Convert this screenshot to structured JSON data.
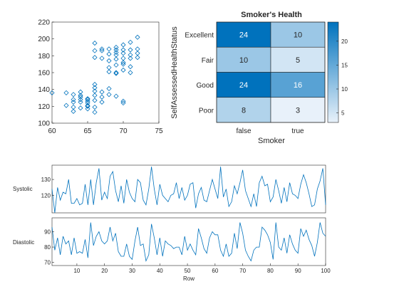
{
  "chart_data": [
    {
      "type": "scatter",
      "marker": "diamond",
      "marker_color": "#0072BD",
      "xlim": [
        60,
        75
      ],
      "ylim": [
        100,
        220
      ],
      "xticks": [
        "60",
        "65",
        "70",
        "75"
      ],
      "yticks": [
        "100",
        "120",
        "140",
        "160",
        "180",
        "200",
        "220"
      ],
      "grid": false,
      "points": [
        [
          60,
          136
        ],
        [
          62,
          136
        ],
        [
          62,
          121
        ],
        [
          63,
          128
        ],
        [
          63,
          125
        ],
        [
          63,
          119
        ],
        [
          63,
          114
        ],
        [
          63,
          134
        ],
        [
          64,
          128
        ],
        [
          64,
          131
        ],
        [
          64,
          125
        ],
        [
          64,
          118
        ],
        [
          64,
          133
        ],
        [
          64,
          137
        ],
        [
          65,
          126
        ],
        [
          65,
          129
        ],
        [
          65,
          124
        ],
        [
          65,
          121
        ],
        [
          65,
          117
        ],
        [
          65,
          128
        ],
        [
          66,
          146
        ],
        [
          66,
          142
        ],
        [
          66,
          138
        ],
        [
          66,
          133
        ],
        [
          66,
          127
        ],
        [
          66,
          119
        ],
        [
          66,
          113
        ],
        [
          66,
          178
        ],
        [
          66,
          195
        ],
        [
          66,
          186
        ],
        [
          67,
          131
        ],
        [
          67,
          137
        ],
        [
          67,
          125
        ],
        [
          67,
          186
        ],
        [
          67,
          177
        ],
        [
          68,
          182
        ],
        [
          68,
          174
        ],
        [
          68,
          166
        ],
        [
          68,
          161
        ],
        [
          68,
          134
        ],
        [
          68,
          141
        ],
        [
          69,
          190
        ],
        [
          69,
          187
        ],
        [
          69,
          176
        ],
        [
          69,
          184
        ],
        [
          69,
          181
        ],
        [
          69,
          169
        ],
        [
          69,
          159
        ],
        [
          69,
          132
        ],
        [
          70,
          183
        ],
        [
          70,
          177
        ],
        [
          70,
          170
        ],
        [
          70,
          163
        ],
        [
          70,
          124
        ],
        [
          70,
          193
        ],
        [
          70,
          187
        ],
        [
          70,
          172
        ],
        [
          70,
          126
        ],
        [
          71,
          181
        ],
        [
          71,
          196
        ],
        [
          71,
          187
        ],
        [
          71,
          177
        ],
        [
          71,
          167
        ],
        [
          71,
          160
        ],
        [
          72,
          202
        ],
        [
          72,
          188
        ],
        [
          72,
          183
        ],
        [
          72,
          178
        ],
        [
          67,
          188
        ],
        [
          68,
          188
        ],
        [
          69,
          160
        ],
        [
          65,
          120
        ]
      ]
    },
    {
      "type": "heatmap",
      "title": "Smoker's Health",
      "xlabel": "Smoker",
      "ylabel": "SelfAssessedHealthStatus",
      "x_categories": [
        "false",
        "true"
      ],
      "y_categories": [
        "Excellent",
        "Fair",
        "Good",
        "Poor"
      ],
      "values": [
        [
          24,
          10
        ],
        [
          10,
          5
        ],
        [
          24,
          16
        ],
        [
          8,
          3
        ]
      ],
      "colorbar": {
        "min": 3,
        "max": 24,
        "ticks": [
          "5",
          "10",
          "15",
          "20"
        ]
      },
      "colors": {
        "high": "#0072BD",
        "low": "#E8F1FA"
      }
    },
    {
      "type": "line",
      "layout": "stacked",
      "xlabel": "Row",
      "xlim": [
        1,
        100
      ],
      "xticks": [
        "10",
        "20",
        "30",
        "40",
        "50",
        "60",
        "70",
        "80",
        "90",
        "100"
      ],
      "line_color": "#0072BD",
      "series": [
        {
          "name": "Systolic",
          "ylim": [
            109,
            139
          ],
          "yticks": [
            "120",
            "130"
          ],
          "values": [
            124,
            109,
            125,
            117,
            122,
            121,
            130,
            115,
            115,
            118,
            114,
            115,
            127,
            114,
            130,
            114,
            128,
            137,
            117,
            122,
            118,
            132,
            135,
            123,
            116,
            126,
            115,
            130,
            122,
            118,
            116,
            130,
            128,
            117,
            114,
            124,
            138,
            124,
            114,
            127,
            120,
            118,
            116,
            120,
            121,
            128,
            118,
            125,
            117,
            120,
            127,
            128,
            112,
            121,
            125,
            117,
            116,
            123,
            130,
            124,
            118,
            138,
            119,
            124,
            113,
            116,
            126,
            121,
            128,
            136,
            123,
            118,
            113,
            121,
            113,
            128,
            132,
            126,
            127,
            116,
            119,
            130,
            123,
            115,
            125,
            116,
            128,
            121,
            120,
            118,
            127,
            133,
            128,
            121,
            113,
            114,
            124,
            129,
            137,
            114
          ]
        },
        {
          "name": "Diastolic",
          "ylim": [
            68,
            99
          ],
          "yticks": [
            "70",
            "80",
            "90"
          ],
          "values": [
            93,
            78,
            86,
            75,
            87,
            82,
            84,
            75,
            86,
            76,
            77,
            76,
            85,
            73,
            96,
            81,
            87,
            90,
            84,
            82,
            84,
            93,
            84,
            89,
            77,
            74,
            74,
            82,
            74,
            72,
            84,
            93,
            81,
            82,
            71,
            75,
            95,
            86,
            75,
            86,
            74,
            84,
            82,
            81,
            79,
            80,
            80,
            75,
            87,
            78,
            82,
            78,
            75,
            92,
            86,
            79,
            76,
            86,
            90,
            88,
            88,
            78,
            74,
            82,
            74,
            76,
            89,
            79,
            96,
            89,
            78,
            74,
            71,
            78,
            80,
            80,
            93,
            91,
            88,
            83,
            72,
            96,
            80,
            78,
            86,
            76,
            88,
            82,
            78,
            76,
            92,
            87,
            91,
            85,
            81,
            74,
            83,
            96,
            89,
            87
          ]
        }
      ]
    }
  ]
}
